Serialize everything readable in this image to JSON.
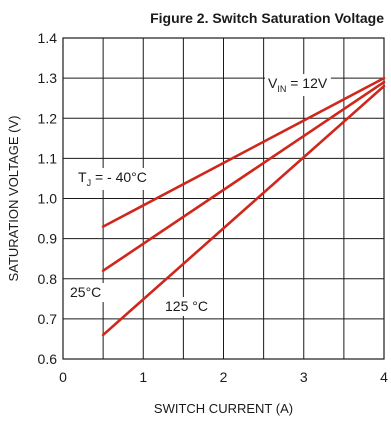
{
  "chart_data": {
    "type": "line",
    "title": "Figure 2. Switch Saturation Voltage",
    "xlabel": "SWITCH CURRENT (A)",
    "ylabel": "SATURATION VOLTAGE (V)",
    "xlim": [
      0,
      4
    ],
    "ylim": [
      0.6,
      1.4
    ],
    "xticks": [
      "0",
      "1",
      "2",
      "3",
      "4"
    ],
    "yticks": [
      "1.4",
      "1.3",
      "1.2",
      "1.1",
      "1.0",
      "0.9",
      "0.8",
      "0.7",
      "0.6"
    ],
    "grid": true,
    "line_color": "#d0271d",
    "series": [
      {
        "name": "T_J = - 40°C",
        "x": [
          0.5,
          4.0
        ],
        "y": [
          0.93,
          1.3
        ]
      },
      {
        "name": "25°C",
        "x": [
          0.5,
          4.0
        ],
        "y": [
          0.82,
          1.29
        ]
      },
      {
        "name": "125 °C",
        "x": [
          0.5,
          4.0
        ],
        "y": [
          0.66,
          1.28
        ]
      }
    ],
    "annotations": {
      "vin": {
        "main": "V",
        "sub": "IN",
        "rest": " = 12V"
      },
      "tj40": {
        "main": "T",
        "sub": "J",
        "rest": " = - 40°C"
      },
      "t25": "25°C",
      "t125": "125 °C"
    }
  }
}
